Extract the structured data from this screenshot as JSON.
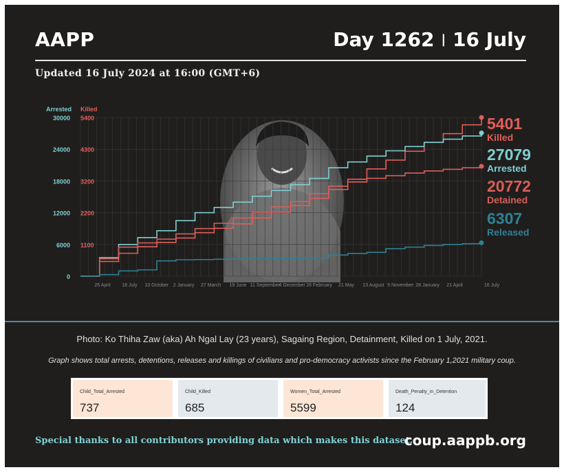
{
  "header": {
    "org": "AAPP",
    "day": "Day 1262",
    "separator": "|",
    "date": "16 July",
    "updated": "Updated 16 July 2024 at 16:00 (GMT+6)"
  },
  "colors": {
    "background": "#1f1e1d",
    "arrested": "#7fcfd1",
    "killed": "#e35d58",
    "detained": "#d95e58",
    "released": "#2e8095",
    "divider": "#4c8ea0",
    "thanks": "#7fd2d4"
  },
  "photo": {
    "icon": "portrait-photo",
    "caption": "Photo: Ko Thiha Zaw (aka) Ah Ngal Lay (23 years), Sagaing Region, Detainment, Killed on 1 July, 2021."
  },
  "note": "Graph shows total arrests, detentions, releases and killings of civilians and pro-democracy activists since the February 1,2021 military coup.",
  "chart_data": {
    "type": "line",
    "y_left_title": "Arrested",
    "y_right_title": "Killed",
    "y_left_ticks": [
      "30000",
      "24000",
      "18000",
      "12000",
      "6000",
      "0"
    ],
    "y_right_ticks": [
      "5400",
      "4300",
      "3200",
      "2200",
      "1100"
    ],
    "x_ticks": [
      "25 April",
      "18 July",
      "10 October",
      "2 January",
      "27 March",
      "19 June",
      "11 September",
      "4 December",
      "26 February",
      "21 May",
      "13 August",
      "5 November",
      "28 January",
      "21 April",
      "16 July"
    ],
    "ylim_left": [
      0,
      30000
    ],
    "ylim_right": [
      0,
      5400
    ],
    "grid": true,
    "legend_position": "right",
    "series": [
      {
        "name": "Killed",
        "axis": "right",
        "final_label": "5401",
        "values": [
          0,
          500,
          780,
          1000,
          1150,
          1300,
          1480,
          1630,
          1780,
          1980,
          2180,
          2400,
          2650,
          2950,
          3300,
          3650,
          3950,
          4250,
          4550,
          4850,
          5150,
          5401
        ]
      },
      {
        "name": "Arrested",
        "axis": "left",
        "final_label": "27079",
        "values": [
          0,
          3500,
          6000,
          7300,
          8600,
          10500,
          12000,
          13000,
          14000,
          15100,
          16200,
          17300,
          18500,
          20500,
          21600,
          22700,
          23700,
          24500,
          25300,
          25900,
          26500,
          27079
        ]
      },
      {
        "name": "Detained",
        "axis": "left",
        "final_label": "20772",
        "values": [
          0,
          3300,
          5500,
          6300,
          7000,
          8000,
          9000,
          10000,
          11000,
          12100,
          13100,
          14100,
          15600,
          17000,
          17800,
          18500,
          19000,
          19500,
          19900,
          20200,
          20500,
          20772
        ]
      },
      {
        "name": "Released",
        "axis": "left",
        "final_label": "6307",
        "values": [
          0,
          300,
          1000,
          1200,
          2900,
          3100,
          3150,
          3200,
          3250,
          3300,
          3350,
          3400,
          3450,
          4000,
          4300,
          4500,
          5200,
          5500,
          5800,
          6000,
          6150,
          6307
        ]
      }
    ]
  },
  "stats": [
    {
      "label": "Child_Total_Arrested",
      "value": "737",
      "bg": "#fde6d5"
    },
    {
      "label": "Child_Killed",
      "value": "685",
      "bg": "#e4e9ee"
    },
    {
      "label": "Women_Total_Arrested",
      "value": "5599",
      "bg": "#fde6d5"
    },
    {
      "label": "Death_Penalty_in_Detention",
      "value": "124",
      "bg": "#e4e9ee"
    }
  ],
  "footer": {
    "thanks": "Special thanks to all contributors providing data which makes this dataset.",
    "url": "coup.aappb.org"
  }
}
